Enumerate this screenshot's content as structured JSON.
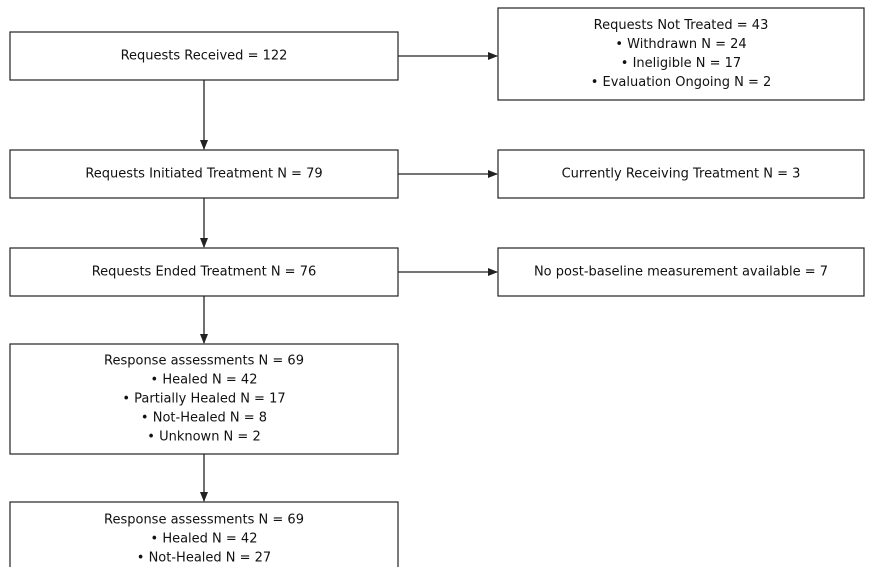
{
  "nodes": [
    {
      "lines": [
        "Requests Received = 122"
      ]
    },
    {
      "lines": [
        "Requests Not Treated = 43",
        "• Withdrawn N = 24",
        "• Ineligible N = 17",
        "• Evaluation Ongoing N = 2"
      ]
    },
    {
      "lines": [
        "Requests Initiated Treatment N = 79"
      ]
    },
    {
      "lines": [
        "Currently Receiving Treatment N = 3"
      ]
    },
    {
      "lines": [
        "Requests Ended Treatment N = 76"
      ]
    },
    {
      "lines": [
        "No post-baseline measurement available = 7"
      ]
    },
    {
      "lines": [
        "Response assessments N = 69",
        "• Healed N = 42",
        "• Partially Healed N = 17",
        "• Not-Healed N = 8",
        "• Unknown N = 2"
      ]
    },
    {
      "lines": [
        "Response assessments N = 69",
        "• Healed N = 42",
        "• Not-Healed N = 27"
      ]
    }
  ]
}
